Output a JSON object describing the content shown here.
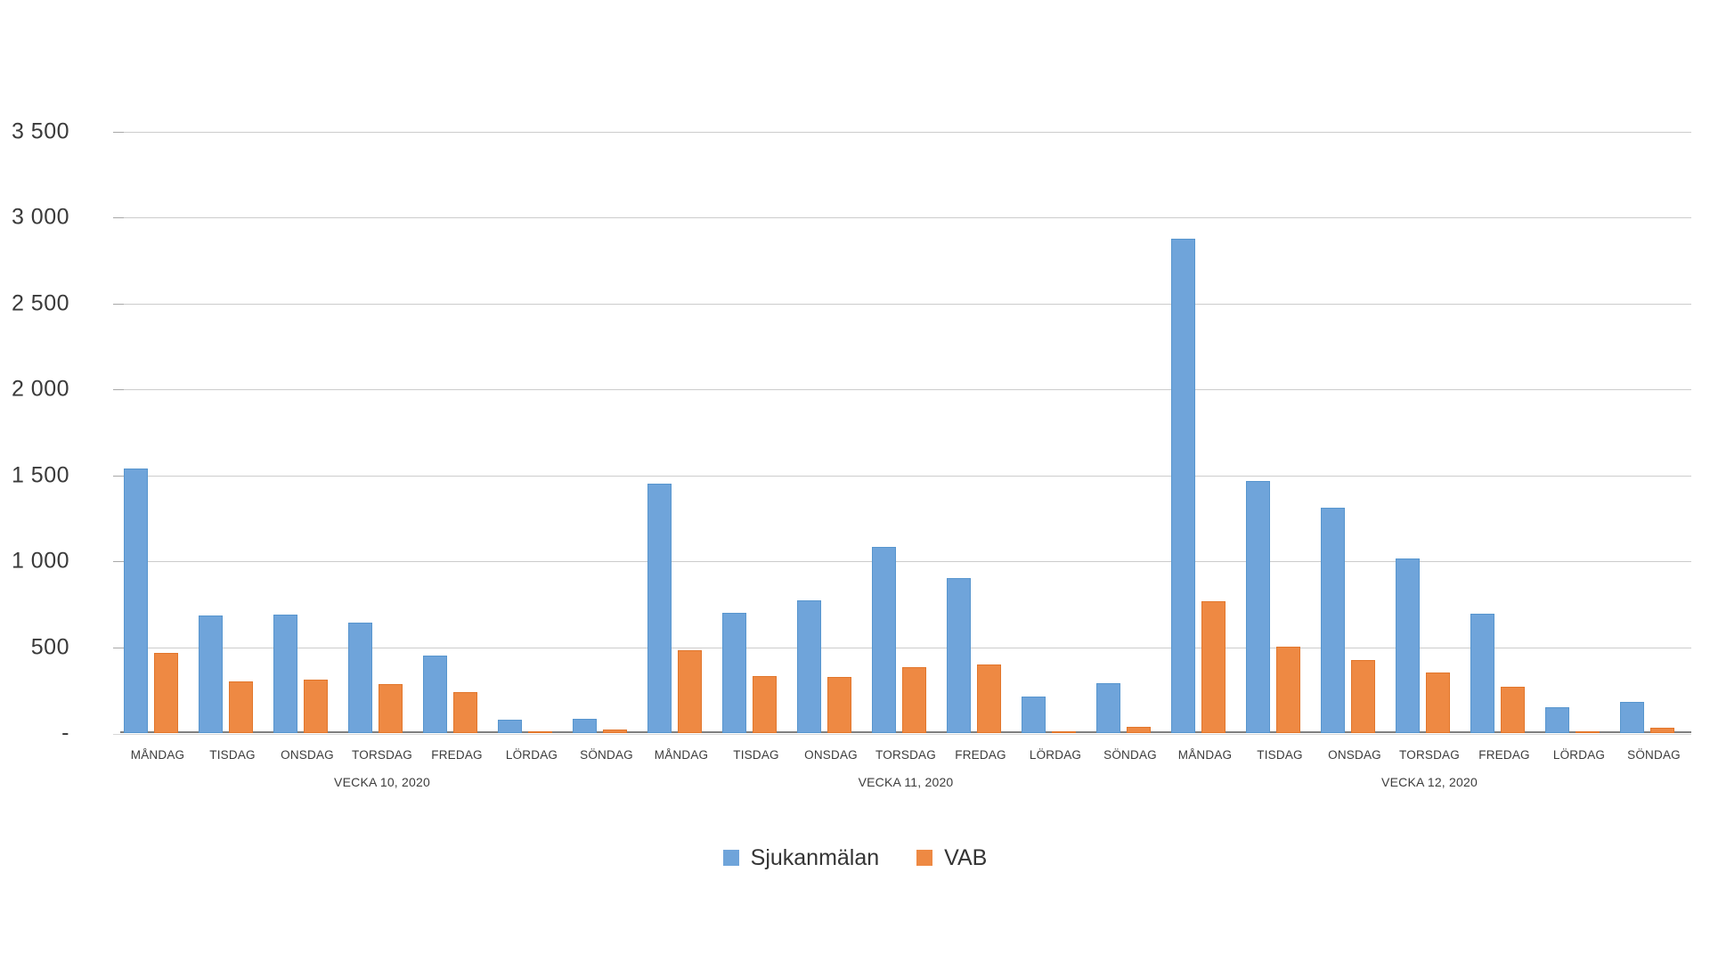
{
  "chart_data": {
    "type": "bar",
    "title": "",
    "xlabel": "",
    "ylabel": "",
    "ylim": [
      0,
      3500
    ],
    "grid": true,
    "legend_position": "bottom-center",
    "y_ticks": [
      {
        "label": "3 500",
        "value": 3500
      },
      {
        "label": "3 000",
        "value": 3000
      },
      {
        "label": "2 500",
        "value": 2500
      },
      {
        "label": "2 000",
        "value": 2000
      },
      {
        "label": "1 500",
        "value": 1500
      },
      {
        "label": "1 000",
        "value": 1000
      },
      {
        "label": "500",
        "value": 500
      },
      {
        "label": "-",
        "value": 0
      }
    ],
    "categories": [
      "MÅNDAG",
      "TISDAG",
      "ONSDAG",
      "TORSDAG",
      "FREDAG",
      "LÖRDAG",
      "SÖNDAG",
      "MÅNDAG",
      "TISDAG",
      "ONSDAG",
      "TORSDAG",
      "FREDAG",
      "LÖRDAG",
      "SÖNDAG",
      "MÅNDAG",
      "TISDAG",
      "ONSDAG",
      "TORSDAG",
      "FREDAG",
      "LÖRDAG",
      "SÖNDAG"
    ],
    "group_labels": [
      "VECKA 10, 2020",
      "VECKA 11, 2020",
      "VECKA 12, 2020"
    ],
    "group_size": 7,
    "series": [
      {
        "name": "Sjukanmälan",
        "color": "#6fa4da",
        "values": [
          1540,
          685,
          690,
          640,
          450,
          80,
          85,
          1450,
          700,
          770,
          1085,
          900,
          210,
          290,
          2875,
          1465,
          1310,
          1015,
          695,
          150,
          180
        ]
      },
      {
        "name": "VAB",
        "color": "#ee8943",
        "values": [
          465,
          300,
          310,
          285,
          240,
          10,
          20,
          480,
          330,
          325,
          385,
          400,
          10,
          35,
          765,
          505,
          425,
          350,
          270,
          10,
          30
        ]
      }
    ]
  }
}
